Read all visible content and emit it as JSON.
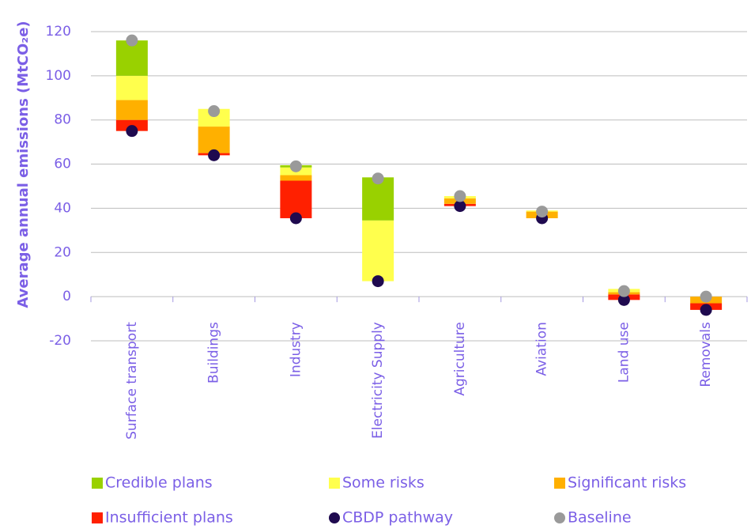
{
  "chart_data": {
    "type": "floating_stacked_bar",
    "ylabel": "Average annual emissions (MtCO₂e)",
    "categories": [
      "Surface transport",
      "Buildings",
      "Industry",
      "Electricity Supply",
      "Agriculture",
      "Aviation",
      "Land use",
      "Removals"
    ],
    "series": [
      {
        "name": "Insufficient plans",
        "color": "#ff2000",
        "values": [
          5,
          1,
          17,
          0,
          1,
          0,
          2.5,
          3
        ]
      },
      {
        "name": "Significant risks",
        "color": "#ffb000",
        "values": [
          9,
          12,
          2.5,
          0,
          2.5,
          3,
          1,
          3
        ]
      },
      {
        "name": "Some risks",
        "color": "#ffff4d",
        "values": [
          11,
          8,
          3.5,
          27.5,
          1,
          0.5,
          1.5,
          0
        ]
      },
      {
        "name": "Credible plans",
        "color": "#99d100",
        "values": [
          16,
          0,
          1,
          19.5,
          0,
          0,
          0,
          0
        ]
      }
    ],
    "markers": [
      {
        "name": "CBDP pathway",
        "color": "#1f0a4f",
        "values": [
          75,
          64,
          35.5,
          7,
          41,
          35.5,
          -1.5,
          -6
        ]
      },
      {
        "name": "Baseline",
        "color": "#9a9a9a",
        "values": [
          116,
          84,
          59,
          53.5,
          45.5,
          38.5,
          2.5,
          0
        ]
      }
    ],
    "ylim": [
      -20,
      125
    ],
    "yticks": [
      -20,
      0,
      20,
      40,
      60,
      80,
      100,
      120
    ],
    "grid": true
  }
}
